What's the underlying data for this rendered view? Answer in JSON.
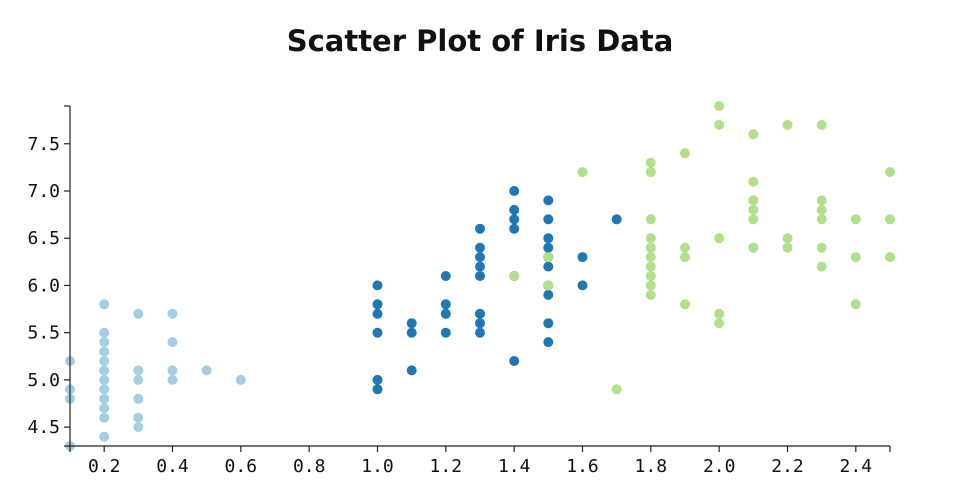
{
  "chart_data": {
    "type": "scatter",
    "title": "Scatter Plot of Iris Data",
    "xlabel": "",
    "ylabel": "",
    "xlim": [
      0.1,
      2.5
    ],
    "ylim": [
      4.3,
      7.9
    ],
    "x_ticks": [
      "0.2",
      "0.4",
      "0.6",
      "0.8",
      "1.0",
      "1.2",
      "1.4",
      "1.6",
      "1.8",
      "2.0",
      "2.2",
      "2.4"
    ],
    "y_ticks": [
      "4.5",
      "5.0",
      "5.5",
      "6.0",
      "6.5",
      "7.0",
      "7.5"
    ],
    "grid": false,
    "legend": "none",
    "series": [
      {
        "color": "#a6cee3",
        "points": [
          [
            0.1,
            4.3
          ],
          [
            0.1,
            4.8
          ],
          [
            0.1,
            4.9
          ],
          [
            0.1,
            5.2
          ],
          [
            0.2,
            4.4
          ],
          [
            0.2,
            4.6
          ],
          [
            0.2,
            4.7
          ],
          [
            0.2,
            4.8
          ],
          [
            0.2,
            4.9
          ],
          [
            0.2,
            5.0
          ],
          [
            0.2,
            5.1
          ],
          [
            0.2,
            5.2
          ],
          [
            0.2,
            5.3
          ],
          [
            0.2,
            5.4
          ],
          [
            0.2,
            5.5
          ],
          [
            0.2,
            5.8
          ],
          [
            0.3,
            4.5
          ],
          [
            0.3,
            4.6
          ],
          [
            0.3,
            4.8
          ],
          [
            0.3,
            5.0
          ],
          [
            0.3,
            5.1
          ],
          [
            0.3,
            5.7
          ],
          [
            0.4,
            5.0
          ],
          [
            0.4,
            5.1
          ],
          [
            0.4,
            5.4
          ],
          [
            0.4,
            5.7
          ],
          [
            0.5,
            5.1
          ],
          [
            0.6,
            5.0
          ]
        ]
      },
      {
        "color": "#1f78b4",
        "points": [
          [
            1.0,
            4.9
          ],
          [
            1.0,
            5.0
          ],
          [
            1.0,
            5.5
          ],
          [
            1.0,
            5.7
          ],
          [
            1.0,
            5.8
          ],
          [
            1.0,
            6.0
          ],
          [
            1.1,
            5.1
          ],
          [
            1.1,
            5.5
          ],
          [
            1.1,
            5.6
          ],
          [
            1.2,
            5.5
          ],
          [
            1.2,
            5.7
          ],
          [
            1.2,
            5.8
          ],
          [
            1.2,
            6.1
          ],
          [
            1.3,
            5.5
          ],
          [
            1.3,
            5.6
          ],
          [
            1.3,
            5.7
          ],
          [
            1.3,
            6.1
          ],
          [
            1.3,
            6.2
          ],
          [
            1.3,
            6.3
          ],
          [
            1.3,
            6.4
          ],
          [
            1.3,
            6.6
          ],
          [
            1.4,
            5.2
          ],
          [
            1.4,
            6.1
          ],
          [
            1.4,
            6.6
          ],
          [
            1.4,
            6.7
          ],
          [
            1.4,
            6.8
          ],
          [
            1.4,
            7.0
          ],
          [
            1.5,
            5.4
          ],
          [
            1.5,
            5.6
          ],
          [
            1.5,
            5.9
          ],
          [
            1.5,
            6.0
          ],
          [
            1.5,
            6.2
          ],
          [
            1.5,
            6.3
          ],
          [
            1.5,
            6.4
          ],
          [
            1.5,
            6.5
          ],
          [
            1.5,
            6.7
          ],
          [
            1.5,
            6.9
          ],
          [
            1.6,
            6.0
          ],
          [
            1.6,
            6.3
          ],
          [
            1.7,
            6.7
          ]
        ]
      },
      {
        "color": "#b2df8a",
        "points": [
          [
            1.4,
            6.1
          ],
          [
            1.5,
            6.0
          ],
          [
            1.5,
            6.3
          ],
          [
            1.6,
            7.2
          ],
          [
            1.7,
            4.9
          ],
          [
            1.8,
            5.9
          ],
          [
            1.8,
            6.0
          ],
          [
            1.8,
            6.1
          ],
          [
            1.8,
            6.2
          ],
          [
            1.8,
            6.3
          ],
          [
            1.8,
            6.4
          ],
          [
            1.8,
            6.5
          ],
          [
            1.8,
            6.7
          ],
          [
            1.8,
            7.2
          ],
          [
            1.8,
            7.3
          ],
          [
            1.9,
            5.8
          ],
          [
            1.9,
            6.3
          ],
          [
            1.9,
            6.4
          ],
          [
            1.9,
            7.4
          ],
          [
            2.0,
            5.6
          ],
          [
            2.0,
            5.7
          ],
          [
            2.0,
            6.5
          ],
          [
            2.0,
            7.7
          ],
          [
            2.0,
            7.9
          ],
          [
            2.1,
            6.4
          ],
          [
            2.1,
            6.7
          ],
          [
            2.1,
            6.8
          ],
          [
            2.1,
            6.9
          ],
          [
            2.1,
            7.1
          ],
          [
            2.1,
            7.6
          ],
          [
            2.2,
            6.4
          ],
          [
            2.2,
            6.5
          ],
          [
            2.2,
            7.7
          ],
          [
            2.3,
            6.2
          ],
          [
            2.3,
            6.4
          ],
          [
            2.3,
            6.7
          ],
          [
            2.3,
            6.8
          ],
          [
            2.3,
            6.9
          ],
          [
            2.3,
            7.7
          ],
          [
            2.4,
            5.8
          ],
          [
            2.4,
            6.3
          ],
          [
            2.4,
            6.7
          ],
          [
            2.5,
            6.3
          ],
          [
            2.5,
            6.7
          ],
          [
            2.5,
            7.2
          ]
        ]
      }
    ]
  }
}
